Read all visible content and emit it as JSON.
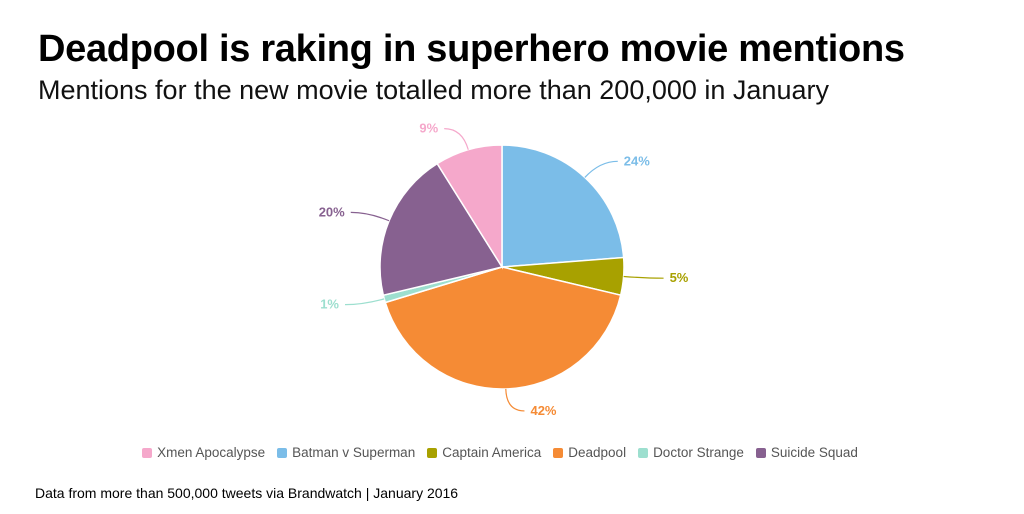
{
  "header": {
    "title": "Deadpool is raking in superhero movie mentions",
    "subtitle": "Mentions for the new movie totalled more than 200,000 in January"
  },
  "footer": {
    "source": "Data from more than 500,000 tweets via Brandwatch | January 2016"
  },
  "chart_data": {
    "type": "pie",
    "title": "",
    "start_angle_deg": 0,
    "direction": "clockwise",
    "slices": [
      {
        "label": "Batman v Superman",
        "value": 24,
        "display": "24%",
        "color": "#7bbde8"
      },
      {
        "label": "Captain America",
        "value": 5,
        "display": "5%",
        "color": "#a8a100"
      },
      {
        "label": "Deadpool",
        "value": 42,
        "display": "42%",
        "color": "#f58b35"
      },
      {
        "label": "Doctor Strange",
        "value": 1,
        "display": "1%",
        "color": "#9ddfcf"
      },
      {
        "label": "Suicide Squad",
        "value": 20,
        "display": "20%",
        "color": "#876190"
      },
      {
        "label": "Xmen Apocalypse",
        "value": 9,
        "display": "9%",
        "color": "#f5a8cb"
      }
    ],
    "legend_order": [
      "Xmen Apocalypse",
      "Batman v Superman",
      "Captain America",
      "Deadpool",
      "Doctor Strange",
      "Suicide Squad"
    ],
    "legend_position": "bottom"
  }
}
